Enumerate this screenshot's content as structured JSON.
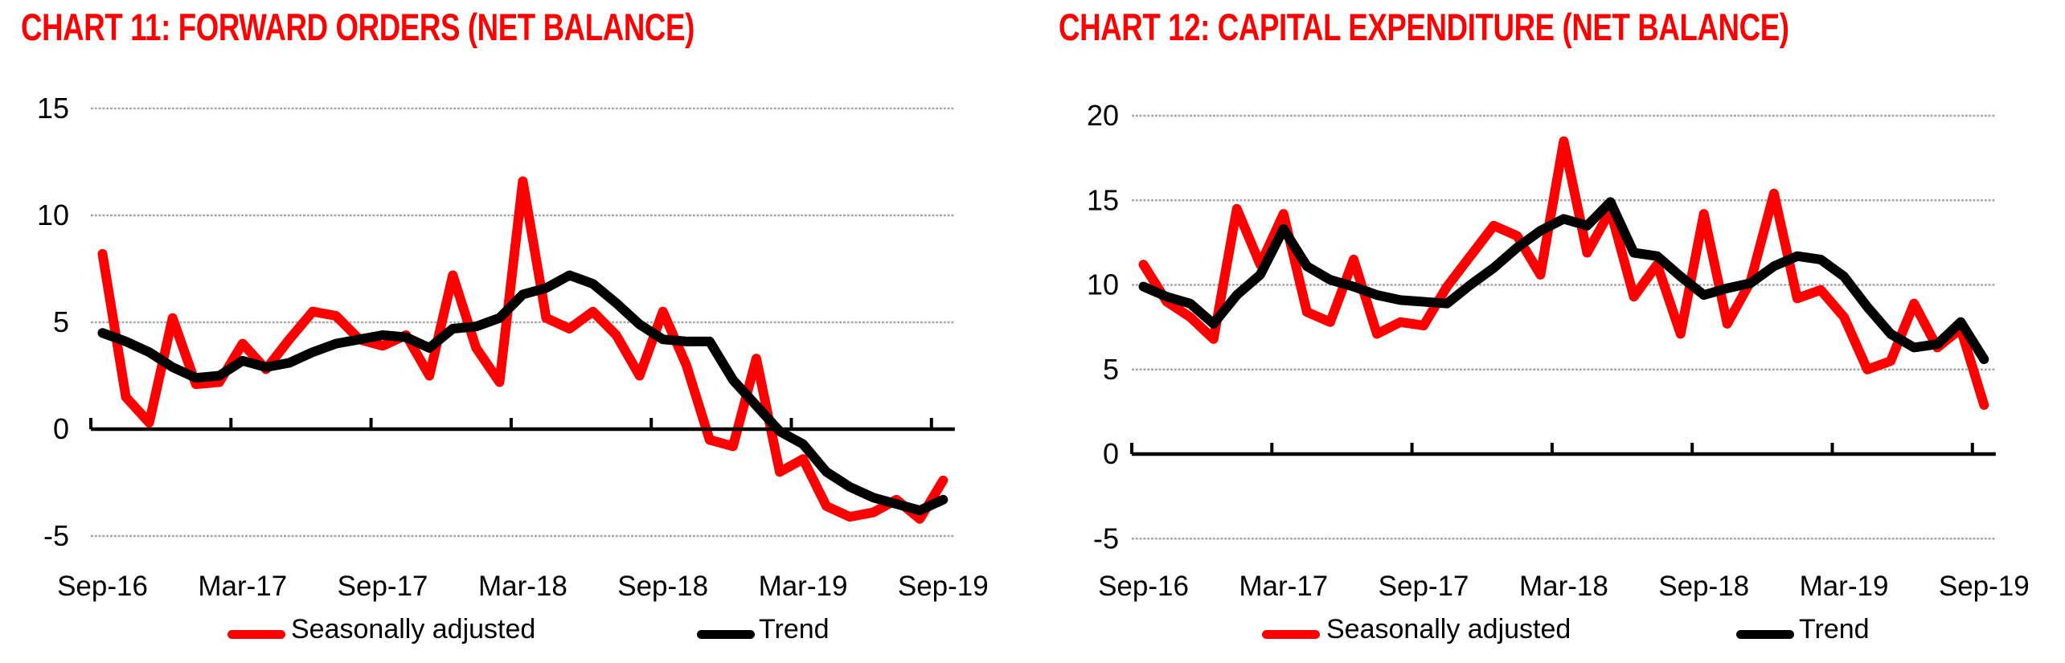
{
  "colors": {
    "title_red": "#ff0000",
    "seasonally_adjusted_red": "#ff0000",
    "trend_black": "#000000",
    "gridline_gray": "#a8a8a8",
    "axis_black": "#000000",
    "background": "#ffffff"
  },
  "chart_data": [
    {
      "id": "chart-11",
      "type": "line",
      "title": "CHART 11: FORWARD ORDERS (NET BALANCE)",
      "xlabel": "",
      "ylabel": "",
      "ylim": [
        -5,
        15
      ],
      "yticks": [
        15,
        10,
        5,
        0,
        -5
      ],
      "grid": "horizontal",
      "legend_position": "bottom",
      "x_tick_labels": [
        "Sep-16",
        "Mar-17",
        "Sep-17",
        "Mar-18",
        "Sep-18",
        "Mar-19",
        "Sep-19"
      ],
      "categories": [
        "Sep-16",
        "Oct-16",
        "Nov-16",
        "Dec-16",
        "Jan-17",
        "Feb-17",
        "Mar-17",
        "Apr-17",
        "May-17",
        "Jun-17",
        "Jul-17",
        "Aug-17",
        "Sep-17",
        "Oct-17",
        "Nov-17",
        "Dec-17",
        "Jan-18",
        "Feb-18",
        "Mar-18",
        "Apr-18",
        "May-18",
        "Jun-18",
        "Jul-18",
        "Aug-18",
        "Sep-18",
        "Oct-18",
        "Nov-18",
        "Dec-18",
        "Jan-19",
        "Feb-19",
        "Mar-19",
        "Apr-19",
        "May-19",
        "Jun-19",
        "Jul-19",
        "Aug-19",
        "Sep-19"
      ],
      "series": [
        {
          "name": "Seasonally adjusted",
          "color": "#ff0000",
          "values": [
            8.2,
            1.5,
            0.3,
            5.2,
            2.1,
            2.2,
            4.0,
            2.8,
            4.2,
            5.5,
            5.3,
            4.2,
            3.9,
            4.4,
            2.5,
            7.2,
            3.8,
            2.2,
            11.6,
            5.2,
            4.7,
            5.5,
            4.4,
            2.5,
            5.5,
            3.0,
            -0.5,
            -0.8,
            3.3,
            -2.0,
            -1.4,
            -3.6,
            -4.1,
            -3.9,
            -3.3,
            -4.2,
            -2.4
          ]
        },
        {
          "name": "Trend",
          "color": "#000000",
          "values": [
            4.5,
            4.1,
            3.6,
            2.9,
            2.4,
            2.5,
            3.2,
            2.9,
            3.1,
            3.6,
            4.0,
            4.2,
            4.4,
            4.3,
            3.8,
            4.7,
            4.8,
            5.2,
            6.3,
            6.6,
            7.2,
            6.8,
            5.9,
            4.9,
            4.2,
            4.1,
            4.1,
            2.3,
            1.1,
            -0.1,
            -0.7,
            -2.0,
            -2.7,
            -3.2,
            -3.5,
            -3.8,
            -3.3
          ]
        }
      ]
    },
    {
      "id": "chart-12",
      "type": "line",
      "title": "CHART 12: CAPITAL EXPENDITURE (NET BALANCE)",
      "xlabel": "",
      "ylabel": "",
      "ylim": [
        -5,
        20
      ],
      "yticks": [
        20,
        15,
        10,
        5,
        0,
        -5
      ],
      "grid": "horizontal",
      "legend_position": "bottom",
      "x_tick_labels": [
        "Sep-16",
        "Mar-17",
        "Sep-17",
        "Mar-18",
        "Sep-18",
        "Mar-19",
        "Sep-19"
      ],
      "categories": [
        "Sep-16",
        "Oct-16",
        "Nov-16",
        "Dec-16",
        "Jan-17",
        "Feb-17",
        "Mar-17",
        "Apr-17",
        "May-17",
        "Jun-17",
        "Jul-17",
        "Aug-17",
        "Sep-17",
        "Oct-17",
        "Nov-17",
        "Dec-17",
        "Jan-18",
        "Feb-18",
        "Mar-18",
        "Apr-18",
        "May-18",
        "Jun-18",
        "Jul-18",
        "Aug-18",
        "Sep-18",
        "Oct-18",
        "Nov-18",
        "Dec-18",
        "Jan-19",
        "Feb-19",
        "Mar-19",
        "Apr-19",
        "May-19",
        "Jun-19",
        "Jul-19",
        "Aug-19",
        "Sep-19"
      ],
      "series": [
        {
          "name": "Seasonally adjusted",
          "color": "#ff0000",
          "values": [
            11.2,
            9.0,
            8.1,
            6.8,
            14.5,
            11.2,
            14.2,
            8.4,
            7.8,
            11.5,
            7.1,
            7.8,
            7.6,
            9.9,
            11.7,
            13.5,
            12.9,
            10.6,
            18.5,
            11.9,
            14.4,
            9.3,
            11.2,
            7.1,
            14.2,
            7.7,
            10.2,
            15.4,
            9.2,
            9.7,
            8.1,
            5.0,
            5.5,
            8.9,
            6.3,
            7.4,
            2.9
          ]
        },
        {
          "name": "Trend",
          "color": "#000000",
          "values": [
            9.9,
            9.3,
            8.9,
            7.7,
            9.4,
            10.6,
            13.3,
            11.1,
            10.3,
            9.9,
            9.4,
            9.1,
            9.0,
            8.9,
            10.0,
            11.0,
            12.2,
            13.2,
            13.9,
            13.5,
            14.9,
            11.9,
            11.7,
            10.5,
            9.4,
            9.8,
            10.1,
            11.1,
            11.7,
            11.5,
            10.5,
            8.7,
            7.1,
            6.3,
            6.5,
            7.8,
            5.6
          ]
        }
      ]
    }
  ]
}
